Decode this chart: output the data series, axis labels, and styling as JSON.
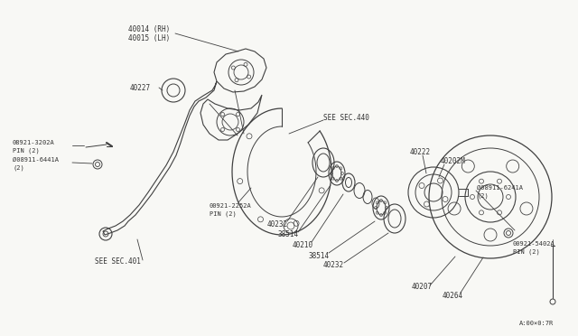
{
  "bg_color": "#f8f8f5",
  "line_color": "#404040",
  "labels": {
    "40014_RH": "40014 (RH)",
    "40015_LH": "40015 (LH)",
    "40227": "40227",
    "08921_3202A": "08921-3202A\nPIN (2)",
    "08911_6441A": "Ø08911-6441A\n(2)",
    "00921_2252A": "00921-2252A\nPIN (2)",
    "SEE_SEC_401": "SEE SEC.401",
    "SEE_SEC_440": "SEE SEC.440",
    "40232_left": "40232",
    "38514_top": "38514",
    "40210": "40210",
    "38514_bot": "38514",
    "40232_right": "40232",
    "40222": "40222",
    "40202M": "40202M",
    "08911_6241A": "Ø08911-6241A\n(2)",
    "00921_5402A": "00921-5402A\nPIN (2)",
    "40207": "40207",
    "40264": "40264",
    "A_note": "A:00×0:7R"
  }
}
